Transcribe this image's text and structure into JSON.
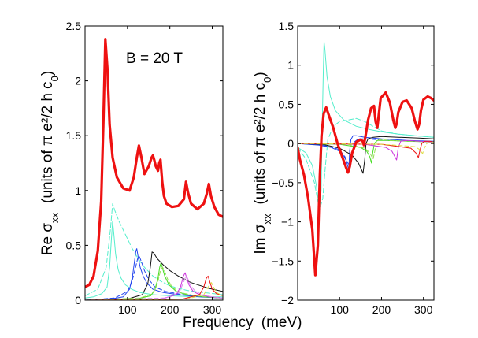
{
  "figure": {
    "xlabel_main": "Frequency",
    "xlabel_units": "(meV)"
  },
  "chart_data": [
    {
      "type": "line",
      "panel": "left",
      "ylabel_prefix": "Re σ",
      "ylabel_sub": "xx",
      "ylabel_units": "(units of π e²/2 h c",
      "ylabel_units_sub": "0",
      "ylabel_units_close": ")",
      "annotation": "B = 20 T",
      "xlim": [
        0,
        325
      ],
      "ylim": [
        0,
        2.5
      ],
      "xticks": [
        100,
        200,
        300
      ],
      "xtick_labels": [
        "100",
        "200",
        "300"
      ],
      "yticks": [
        0,
        0.5,
        1,
        1.5,
        2,
        2.5
      ],
      "ytick_labels": [
        "0",
        "0.5",
        "1",
        "1.5",
        "2",
        "2.5"
      ],
      "series": [
        {
          "name": "total",
          "color": "#ee1111",
          "width": 3.2,
          "dash": "",
          "x": [
            0,
            10,
            20,
            30,
            38,
            43,
            48,
            53,
            58,
            65,
            75,
            90,
            105,
            115,
            122,
            127,
            133,
            140,
            150,
            157,
            160,
            163,
            167,
            172,
            175,
            178,
            182,
            186,
            192,
            205,
            220,
            233,
            238,
            243,
            250,
            265,
            280,
            287,
            292,
            297,
            305,
            315,
            325
          ],
          "y": [
            0.12,
            0.14,
            0.22,
            0.45,
            0.9,
            1.6,
            2.38,
            2.1,
            1.6,
            1.3,
            1.12,
            1.02,
            1.0,
            1.12,
            1.3,
            1.41,
            1.3,
            1.15,
            1.22,
            1.3,
            1.32,
            1.28,
            1.22,
            1.18,
            1.25,
            1.28,
            1.08,
            0.95,
            0.88,
            0.85,
            0.86,
            0.92,
            1.08,
            0.98,
            0.88,
            0.83,
            0.88,
            0.97,
            1.06,
            0.95,
            0.85,
            0.78,
            0.76
          ]
        },
        {
          "name": "cyan-lowest",
          "color": "#55eecc",
          "width": 1,
          "dash": "",
          "x": [
            0,
            20,
            40,
            52,
            58,
            62,
            65,
            68,
            72,
            78,
            85,
            95,
            110,
            130,
            160,
            200,
            260,
            325
          ],
          "y": [
            0.02,
            0.03,
            0.06,
            0.12,
            0.3,
            0.55,
            0.72,
            0.6,
            0.42,
            0.28,
            0.2,
            0.14,
            0.1,
            0.07,
            0.05,
            0.04,
            0.03,
            0.03
          ]
        },
        {
          "name": "cyan-dashed",
          "color": "#55eecc",
          "width": 1,
          "dash": "6,3",
          "x": [
            0,
            30,
            50,
            60,
            65,
            70,
            80,
            95,
            110,
            125,
            140,
            160,
            180,
            200,
            240,
            280,
            325
          ],
          "y": [
            0.04,
            0.1,
            0.3,
            0.65,
            0.88,
            0.82,
            0.72,
            0.6,
            0.48,
            0.38,
            0.3,
            0.22,
            0.17,
            0.13,
            0.09,
            0.07,
            0.05
          ]
        },
        {
          "name": "blue",
          "color": "#2244ee",
          "width": 1,
          "dash": "",
          "x": [
            0,
            60,
            90,
            105,
            112,
            116,
            120,
            122,
            125,
            130,
            137,
            145,
            160,
            185,
            220,
            270,
            325
          ],
          "y": [
            0.0,
            0.01,
            0.03,
            0.1,
            0.22,
            0.34,
            0.45,
            0.47,
            0.4,
            0.3,
            0.22,
            0.16,
            0.1,
            0.07,
            0.05,
            0.03,
            0.02
          ]
        },
        {
          "name": "blue-dashed",
          "color": "#2244ee",
          "width": 1,
          "dash": "5,3",
          "x": [
            0,
            70,
            100,
            110,
            118,
            124,
            128,
            133,
            140,
            150,
            165,
            190,
            230,
            280,
            325
          ],
          "y": [
            0.0,
            0.02,
            0.08,
            0.16,
            0.28,
            0.38,
            0.4,
            0.35,
            0.27,
            0.19,
            0.12,
            0.08,
            0.05,
            0.03,
            0.02
          ]
        },
        {
          "name": "black",
          "color": "#111111",
          "width": 1,
          "dash": "",
          "x": [
            0,
            100,
            135,
            148,
            154,
            158,
            162,
            170,
            185,
            200,
            220,
            250,
            290,
            325
          ],
          "y": [
            0.0,
            0.01,
            0.05,
            0.15,
            0.3,
            0.44,
            0.43,
            0.38,
            0.32,
            0.27,
            0.22,
            0.16,
            0.11,
            0.08
          ]
        },
        {
          "name": "green",
          "color": "#44dd22",
          "width": 1,
          "dash": "",
          "x": [
            0,
            120,
            155,
            165,
            172,
            176,
            179,
            182,
            188,
            198,
            215,
            240,
            280,
            325
          ],
          "y": [
            0.0,
            0.01,
            0.04,
            0.1,
            0.2,
            0.3,
            0.34,
            0.3,
            0.22,
            0.14,
            0.08,
            0.05,
            0.03,
            0.02
          ]
        },
        {
          "name": "green-dashed",
          "color": "#99dd55",
          "width": 1,
          "dash": "5,3",
          "x": [
            0,
            130,
            160,
            170,
            178,
            183,
            187,
            195,
            205,
            225,
            260,
            325
          ],
          "y": [
            0.0,
            0.02,
            0.06,
            0.14,
            0.27,
            0.3,
            0.27,
            0.19,
            0.12,
            0.07,
            0.04,
            0.02
          ]
        },
        {
          "name": "magenta",
          "color": "#cc33dd",
          "width": 1,
          "dash": "",
          "x": [
            0,
            180,
            215,
            225,
            232,
            236,
            240,
            245,
            255,
            270,
            295,
            325
          ],
          "y": [
            0.0,
            0.01,
            0.05,
            0.12,
            0.22,
            0.25,
            0.2,
            0.14,
            0.08,
            0.05,
            0.03,
            0.02
          ]
        },
        {
          "name": "magenta-dashed",
          "color": "#dd88ee",
          "width": 1,
          "dash": "5,3",
          "x": [
            0,
            190,
            222,
            232,
            238,
            242,
            248,
            258,
            275,
            300,
            325
          ],
          "y": [
            0.0,
            0.02,
            0.07,
            0.16,
            0.22,
            0.2,
            0.14,
            0.09,
            0.05,
            0.03,
            0.02
          ]
        },
        {
          "name": "red-thin",
          "color": "#ee1111",
          "width": 1,
          "dash": "",
          "x": [
            0,
            230,
            270,
            280,
            286,
            290,
            294,
            300,
            310,
            325
          ],
          "y": [
            0.0,
            0.01,
            0.05,
            0.12,
            0.2,
            0.22,
            0.17,
            0.1,
            0.06,
            0.04
          ]
        },
        {
          "name": "yellow-dashed",
          "color": "#dddd44",
          "width": 1,
          "dash": "5,3",
          "x": [
            0,
            240,
            280,
            292,
            298,
            303,
            310,
            325
          ],
          "y": [
            0.0,
            0.01,
            0.05,
            0.13,
            0.16,
            0.12,
            0.07,
            0.04
          ]
        }
      ]
    },
    {
      "type": "line",
      "panel": "right",
      "ylabel_prefix": "Im σ",
      "ylabel_sub": "xx",
      "ylabel_units": "(units of π e²/2 h c",
      "ylabel_units_sub": "0",
      "ylabel_units_close": ")",
      "xlim": [
        0,
        325
      ],
      "ylim": [
        -2,
        1.5
      ],
      "xticks": [
        100,
        200,
        300
      ],
      "xtick_labels": [
        "100",
        "200",
        "300"
      ],
      "yticks": [
        -2,
        -1.5,
        -1,
        -0.5,
        0,
        0.5,
        1,
        1.5
      ],
      "ytick_labels": [
        "−2",
        "−1.5",
        "−1",
        "−0.5",
        "0",
        "0.5",
        "1",
        "1.5"
      ],
      "series": [
        {
          "name": "total",
          "color": "#ee1111",
          "width": 3.2,
          "dash": "",
          "x": [
            0,
            5,
            15,
            25,
            35,
            42,
            48,
            53,
            57,
            62,
            68,
            75,
            85,
            95,
            105,
            115,
            120,
            124,
            130,
            140,
            150,
            155,
            158,
            162,
            168,
            175,
            182,
            186,
            190,
            198,
            210,
            220,
            228,
            233,
            236,
            240,
            250,
            260,
            272,
            280,
            286,
            290,
            294,
            300,
            310,
            318,
            325
          ],
          "y": [
            -0.05,
            -0.2,
            -0.4,
            -0.7,
            -1.1,
            -1.68,
            -1.3,
            -0.4,
            0.1,
            0.38,
            0.46,
            0.35,
            0.2,
            0.0,
            -0.15,
            -0.3,
            -0.37,
            -0.3,
            -0.12,
            0.02,
            0.05,
            0.03,
            -0.02,
            0.1,
            0.3,
            0.45,
            0.48,
            0.28,
            0.2,
            0.58,
            0.65,
            0.52,
            0.3,
            0.2,
            0.25,
            0.4,
            0.53,
            0.55,
            0.45,
            0.28,
            0.18,
            0.25,
            0.42,
            0.56,
            0.6,
            0.58,
            0.55
          ]
        },
        {
          "name": "cyan",
          "color": "#55eecc",
          "width": 1,
          "dash": "",
          "x": [
            0,
            20,
            35,
            45,
            52,
            56,
            58,
            61,
            63,
            65,
            70,
            78,
            90,
            110,
            140,
            170,
            200,
            240,
            280,
            325
          ],
          "y": [
            -0.05,
            -0.12,
            -0.28,
            -0.55,
            -0.85,
            -0.6,
            0.1,
            0.9,
            1.3,
            1.2,
            0.85,
            0.6,
            0.42,
            0.3,
            0.22,
            0.18,
            0.15,
            0.12,
            0.1,
            0.08
          ]
        },
        {
          "name": "cyan-dashed",
          "color": "#55eecc",
          "width": 1,
          "dash": "6,3",
          "x": [
            0,
            20,
            40,
            52,
            60,
            66,
            72,
            85,
            100,
            120,
            140,
            160,
            180,
            200,
            240,
            280,
            325
          ],
          "y": [
            -0.05,
            -0.2,
            -0.5,
            -0.85,
            -0.7,
            -0.3,
            0.05,
            0.22,
            0.28,
            0.3,
            0.32,
            0.28,
            0.22,
            0.16,
            0.12,
            0.1,
            0.08
          ]
        },
        {
          "name": "blue",
          "color": "#2244ee",
          "width": 1,
          "dash": "",
          "x": [
            0,
            50,
            80,
            100,
            110,
            116,
            120,
            122,
            124,
            127,
            132,
            140,
            160,
            200,
            260,
            325
          ],
          "y": [
            0.0,
            -0.02,
            -0.05,
            -0.1,
            -0.16,
            -0.22,
            -0.3,
            -0.34,
            -0.1,
            0.05,
            0.1,
            0.1,
            0.08,
            0.06,
            0.04,
            0.03
          ]
        },
        {
          "name": "blue-dashed",
          "color": "#2244ee",
          "width": 1,
          "dash": "5,3",
          "x": [
            0,
            60,
            95,
            110,
            120,
            126,
            130,
            135,
            145,
            165,
            210,
            270,
            325
          ],
          "y": [
            0.0,
            -0.02,
            -0.07,
            -0.14,
            -0.25,
            -0.3,
            -0.12,
            0.02,
            0.06,
            0.06,
            0.04,
            0.03,
            0.02
          ]
        },
        {
          "name": "black",
          "color": "#111111",
          "width": 1,
          "dash": "",
          "x": [
            0,
            60,
            100,
            130,
            145,
            152,
            156,
            160,
            163,
            168,
            180,
            200,
            240,
            290,
            325
          ],
          "y": [
            0.0,
            -0.01,
            -0.06,
            -0.15,
            -0.25,
            -0.33,
            -0.38,
            -0.2,
            0.0,
            0.06,
            0.08,
            0.09,
            0.08,
            0.07,
            0.06
          ]
        },
        {
          "name": "green",
          "color": "#44dd22",
          "width": 1,
          "dash": "",
          "x": [
            0,
            100,
            150,
            165,
            172,
            176,
            179,
            183,
            190,
            210,
            260,
            325
          ],
          "y": [
            0.0,
            -0.01,
            -0.05,
            -0.1,
            -0.17,
            -0.25,
            -0.12,
            0.0,
            0.04,
            0.04,
            0.03,
            0.02
          ]
        },
        {
          "name": "green-dashed",
          "color": "#99dd55",
          "width": 1,
          "dash": "5,3",
          "x": [
            0,
            120,
            160,
            172,
            180,
            184,
            188,
            195,
            220,
            270,
            325
          ],
          "y": [
            0.0,
            -0.01,
            -0.06,
            -0.12,
            -0.2,
            -0.1,
            0.02,
            0.05,
            0.04,
            0.03,
            0.02
          ]
        },
        {
          "name": "magenta",
          "color": "#cc33dd",
          "width": 1,
          "dash": "",
          "x": [
            0,
            160,
            210,
            225,
            232,
            236,
            240,
            246,
            260,
            290,
            325
          ],
          "y": [
            0.0,
            -0.01,
            -0.05,
            -0.1,
            -0.17,
            -0.21,
            -0.05,
            0.03,
            0.04,
            0.03,
            0.02
          ]
        },
        {
          "name": "red-thin",
          "color": "#ee1111",
          "width": 1,
          "dash": "",
          "x": [
            0,
            200,
            270,
            282,
            288,
            292,
            296,
            303,
            315,
            325
          ],
          "y": [
            0.0,
            -0.01,
            -0.06,
            -0.12,
            -0.18,
            -0.08,
            0.0,
            0.03,
            0.03,
            0.02
          ]
        },
        {
          "name": "yellow-dashed",
          "color": "#dddd44",
          "width": 1,
          "dash": "5,3",
          "x": [
            0,
            200,
            280,
            292,
            298,
            302,
            308,
            318,
            325
          ],
          "y": [
            0.0,
            -0.01,
            -0.04,
            -0.08,
            -0.13,
            -0.06,
            0.0,
            0.02,
            0.02
          ]
        }
      ]
    }
  ]
}
